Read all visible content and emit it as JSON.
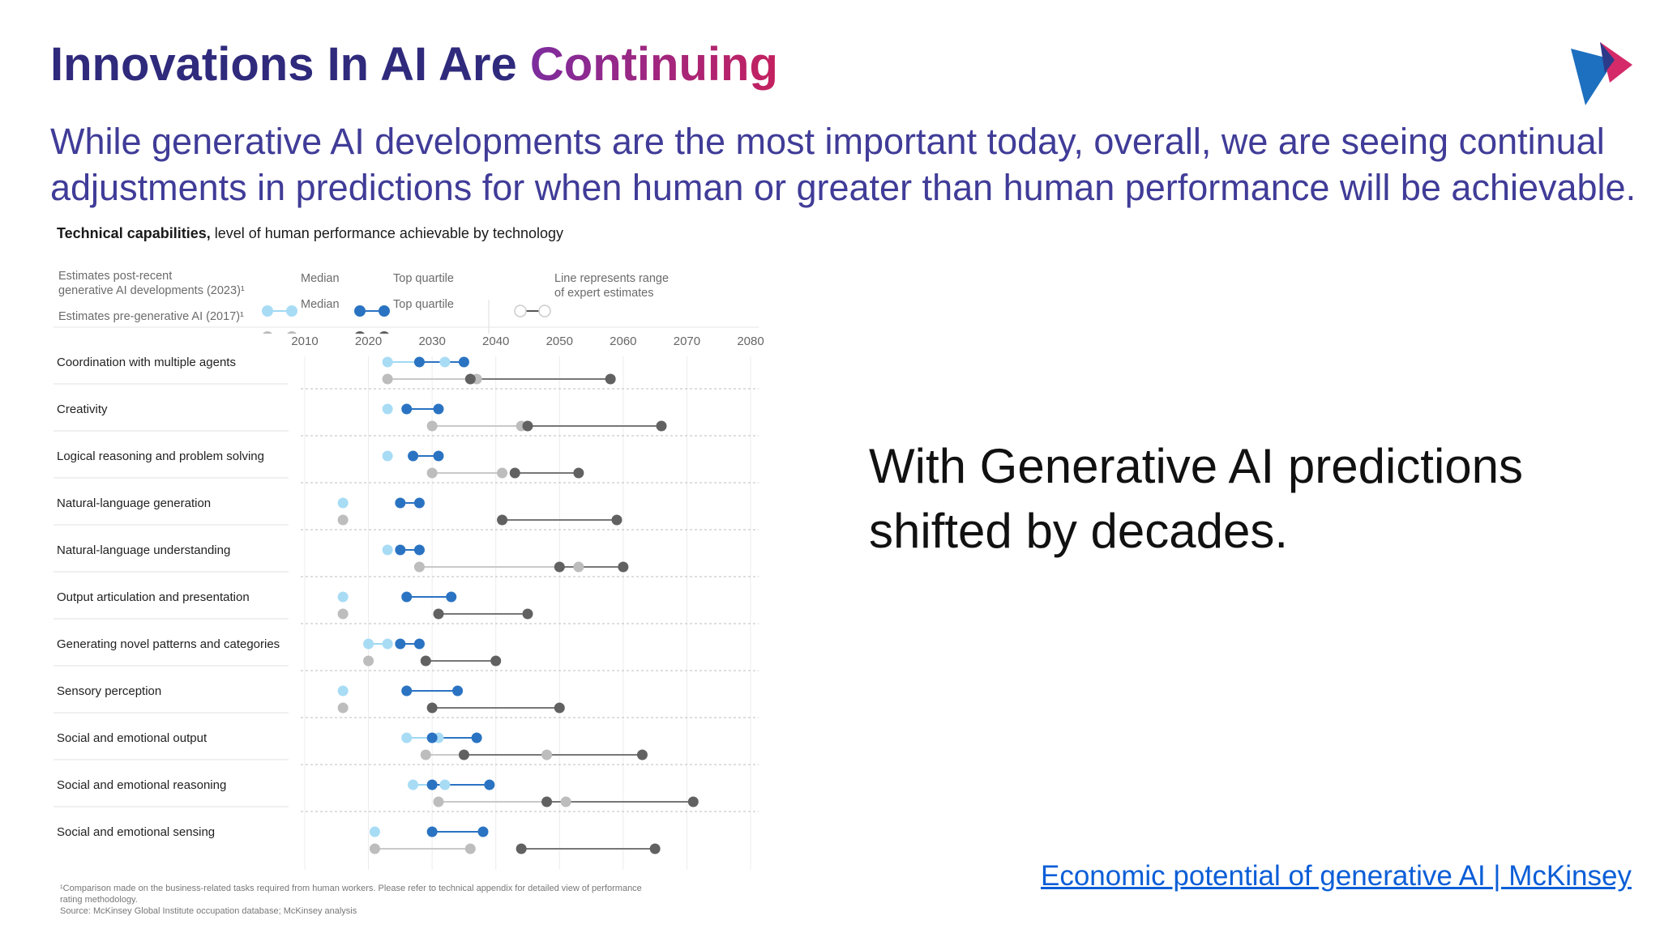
{
  "slide": {
    "title_part1": "Innovations In AI Are ",
    "title_part2": "Continuing",
    "subtitle": "While generative AI developments are the most important today, overall, we are seeing continual adjustments in predictions for when human or greater than human performance will be achievable.",
    "callout": "With Generative AI predictions shifted by decades.",
    "source_link": "Economic potential of generative AI | McKinsey",
    "colors": {
      "title_dark": "#2f2a7c",
      "title_accent": "#a0287e",
      "subtitle": "#403c98",
      "link": "#0b5ed7",
      "median_2023": "#a8dcf5",
      "top_2023": "#2a73c2",
      "median_2017": "#bdbdbd",
      "top_2017": "#616161"
    }
  },
  "figure": {
    "title_bold": "Technical capabilities,",
    "title_rest": " level of human performance achievable by technology",
    "legend": {
      "post_label_line1": "Estimates post-recent",
      "post_label_line2": "generative AI developments (2023)¹",
      "pre_label": "Estimates pre-generative AI (2017)¹",
      "median": "Median",
      "top_quartile": "Top quartile",
      "range_line1": "Line represents range",
      "range_line2": "of expert estimates"
    },
    "footnote_line1": "¹Comparison made on the business-related tasks required from human workers. Please refer to technical appendix for detailed view of performance",
    "footnote_line2": " rating methodology.",
    "footnote_line3": "Source: McKinsey Global Institute occupation database; McKinsey analysis"
  },
  "chart_data": {
    "type": "scatter",
    "title": "Technical capabilities, level of human performance achievable by technology",
    "x_ticks": [
      2010,
      2020,
      2030,
      2040,
      2050,
      2060,
      2070,
      2080
    ],
    "xlim": [
      2010,
      2080
    ],
    "grid": "vertical lines at ticks, dashed row separators",
    "legend_placement": "top",
    "series": [
      {
        "name": "Estimates post-recent generative AI developments (2023) Median",
        "key": "m2023"
      },
      {
        "name": "Estimates post-recent generative AI developments (2023) Top quartile",
        "key": "t2023"
      },
      {
        "name": "Estimates pre-generative AI (2017) Median",
        "key": "m2017"
      },
      {
        "name": "Estimates pre-generative AI (2017) Top quartile",
        "key": "t2017"
      }
    ],
    "categories": [
      {
        "label": "Coordination with multiple agents",
        "m2023": [
          2023,
          2032
        ],
        "t2023": [
          2028,
          2035
        ],
        "m2017": [
          2023,
          2037
        ],
        "t2017": [
          2036,
          2058
        ]
      },
      {
        "label": "Creativity",
        "m2023": [
          2023
        ],
        "t2023": [
          2026,
          2031
        ],
        "m2017": [
          2030,
          2044
        ],
        "t2017": [
          2045,
          2066
        ]
      },
      {
        "label": "Logical reasoning and problem solving",
        "m2023": [
          2023
        ],
        "t2023": [
          2027,
          2031
        ],
        "m2017": [
          2030,
          2041
        ],
        "t2017": [
          2043,
          2053
        ]
      },
      {
        "label": "Natural-language generation",
        "m2023": [
          2016
        ],
        "t2023": [
          2025,
          2028
        ],
        "m2017": [
          2016
        ],
        "t2017": [
          2041,
          2059
        ]
      },
      {
        "label": "Natural-language understanding",
        "m2023": [
          2023
        ],
        "t2023": [
          2025,
          2028
        ],
        "m2017": [
          2028,
          2053
        ],
        "t2017": [
          2050,
          2060
        ]
      },
      {
        "label": "Output articulation and presentation",
        "m2023": [
          2016
        ],
        "t2023": [
          2026,
          2033
        ],
        "m2017": [
          2016
        ],
        "t2017": [
          2031,
          2045
        ]
      },
      {
        "label": "Generating novel patterns and categories",
        "m2023": [
          2020,
          2023
        ],
        "t2023": [
          2025,
          2028
        ],
        "m2017": [
          2020
        ],
        "t2017": [
          2029,
          2040
        ]
      },
      {
        "label": "Sensory perception",
        "m2023": [
          2016
        ],
        "t2023": [
          2026,
          2034
        ],
        "m2017": [
          2016
        ],
        "t2017": [
          2030,
          2050
        ]
      },
      {
        "label": "Social and emotional output",
        "m2023": [
          2026,
          2031
        ],
        "t2023": [
          2030,
          2037
        ],
        "m2017": [
          2029,
          2048
        ],
        "t2017": [
          2035,
          2063
        ]
      },
      {
        "label": "Social and emotional reasoning",
        "m2023": [
          2027,
          2032
        ],
        "t2023": [
          2030,
          2039
        ],
        "m2017": [
          2031,
          2051
        ],
        "t2017": [
          2048,
          2071
        ]
      },
      {
        "label": "Social and emotional sensing",
        "m2023": [
          2021
        ],
        "t2023": [
          2030,
          2038
        ],
        "m2017": [
          2021,
          2036
        ],
        "t2017": [
          2044,
          2065
        ]
      }
    ]
  }
}
